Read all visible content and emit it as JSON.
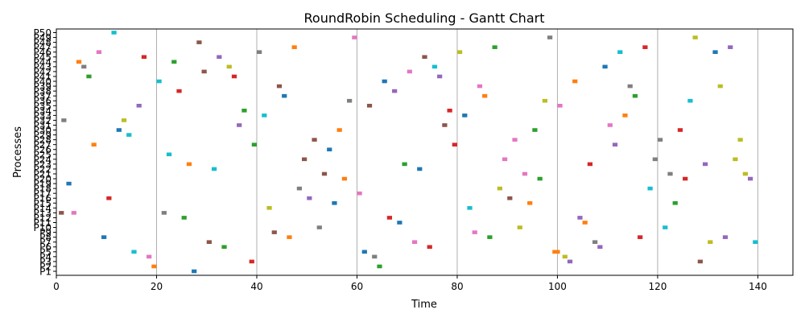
{
  "chart_data": {
    "type": "gantt",
    "title": "RoundRobin Scheduling - Gantt Chart",
    "xlabel": "Time",
    "ylabel": "Processes",
    "xlim": [
      0,
      147
    ],
    "xticks": [
      0,
      20,
      40,
      60,
      80,
      100,
      120,
      140
    ],
    "grid": "vertical",
    "categories": [
      "P1",
      "P2",
      "P3",
      "P4",
      "P5",
      "P6",
      "P7",
      "P8",
      "P9",
      "P10",
      "P11",
      "P12",
      "P13",
      "P14",
      "P15",
      "P16",
      "P17",
      "P18",
      "P19",
      "P20",
      "P21",
      "P22",
      "P23",
      "P24",
      "P25",
      "P26",
      "P27",
      "P28",
      "P29",
      "P30",
      "P31",
      "P32",
      "P33",
      "P34",
      "P35",
      "P36",
      "P37",
      "P38",
      "P39",
      "P40",
      "P41",
      "P42",
      "P43",
      "P44",
      "P45",
      "P46",
      "P47",
      "P48",
      "P49",
      "P50"
    ],
    "palette": [
      "#1f77b4",
      "#ff7f0e",
      "#2ca02c",
      "#d62728",
      "#9467bd",
      "#8c564b",
      "#e377c2",
      "#7f7f7f",
      "#bcbd22",
      "#17becf"
    ],
    "segments": [
      {
        "process": "P1",
        "start": 27,
        "end": 28
      },
      {
        "process": "P2",
        "start": 19,
        "end": 20
      },
      {
        "process": "P2",
        "start": 64,
        "end": 65
      },
      {
        "process": "P3",
        "start": 38.5,
        "end": 39.5
      },
      {
        "process": "P3",
        "start": 102,
        "end": 103
      },
      {
        "process": "P3",
        "start": 128,
        "end": 129
      },
      {
        "process": "P4",
        "start": 18,
        "end": 19
      },
      {
        "process": "P4",
        "start": 63,
        "end": 64
      },
      {
        "process": "P4",
        "start": 101,
        "end": 102
      },
      {
        "process": "P5",
        "start": 15,
        "end": 16
      },
      {
        "process": "P5",
        "start": 61,
        "end": 62
      },
      {
        "process": "P5",
        "start": 99,
        "end": 100.5
      },
      {
        "process": "P6",
        "start": 33,
        "end": 34
      },
      {
        "process": "P6",
        "start": 74,
        "end": 75
      },
      {
        "process": "P6",
        "start": 108,
        "end": 109
      },
      {
        "process": "P7",
        "start": 30,
        "end": 31
      },
      {
        "process": "P7",
        "start": 71,
        "end": 72
      },
      {
        "process": "P7",
        "start": 107,
        "end": 108
      },
      {
        "process": "P7",
        "start": 130,
        "end": 131
      },
      {
        "process": "P7",
        "start": 139,
        "end": 140
      },
      {
        "process": "P8",
        "start": 9,
        "end": 10
      },
      {
        "process": "P8",
        "start": 46,
        "end": 47
      },
      {
        "process": "P8",
        "start": 86,
        "end": 87
      },
      {
        "process": "P8",
        "start": 116,
        "end": 117
      },
      {
        "process": "P8",
        "start": 133,
        "end": 134
      },
      {
        "process": "P9",
        "start": 43,
        "end": 44
      },
      {
        "process": "P9",
        "start": 83,
        "end": 84
      },
      {
        "process": "P10",
        "start": 52,
        "end": 53
      },
      {
        "process": "P10",
        "start": 92,
        "end": 93
      },
      {
        "process": "P10",
        "start": 121,
        "end": 122
      },
      {
        "process": "P11",
        "start": 68,
        "end": 69
      },
      {
        "process": "P11",
        "start": 105,
        "end": 106
      },
      {
        "process": "P12",
        "start": 25,
        "end": 26
      },
      {
        "process": "P12",
        "start": 66,
        "end": 67
      },
      {
        "process": "P12",
        "start": 104,
        "end": 105
      },
      {
        "process": "P13",
        "start": 0.5,
        "end": 1.5
      },
      {
        "process": "P13",
        "start": 3,
        "end": 4
      },
      {
        "process": "P13",
        "start": 21,
        "end": 22
      },
      {
        "process": "P14",
        "start": 42,
        "end": 43
      },
      {
        "process": "P14",
        "start": 82,
        "end": 83
      },
      {
        "process": "P15",
        "start": 55,
        "end": 56
      },
      {
        "process": "P15",
        "start": 94,
        "end": 95
      },
      {
        "process": "P15",
        "start": 123,
        "end": 124
      },
      {
        "process": "P16",
        "start": 10,
        "end": 11
      },
      {
        "process": "P16",
        "start": 50,
        "end": 51
      },
      {
        "process": "P16",
        "start": 90,
        "end": 91
      },
      {
        "process": "P17",
        "start": 60,
        "end": 61
      },
      {
        "process": "P18",
        "start": 48,
        "end": 49
      },
      {
        "process": "P18",
        "start": 88,
        "end": 89
      },
      {
        "process": "P18",
        "start": 118,
        "end": 119
      },
      {
        "process": "P19",
        "start": 2,
        "end": 3
      },
      {
        "process": "P20",
        "start": 57,
        "end": 58
      },
      {
        "process": "P20",
        "start": 96,
        "end": 97
      },
      {
        "process": "P20",
        "start": 125,
        "end": 126
      },
      {
        "process": "P20",
        "start": 138,
        "end": 139
      },
      {
        "process": "P21",
        "start": 53,
        "end": 54
      },
      {
        "process": "P21",
        "start": 93,
        "end": 94
      },
      {
        "process": "P21",
        "start": 122,
        "end": 123
      },
      {
        "process": "P21",
        "start": 137,
        "end": 138
      },
      {
        "process": "P22",
        "start": 31,
        "end": 32
      },
      {
        "process": "P22",
        "start": 72,
        "end": 73
      },
      {
        "process": "P23",
        "start": 26,
        "end": 27
      },
      {
        "process": "P23",
        "start": 69,
        "end": 70
      },
      {
        "process": "P23",
        "start": 106,
        "end": 107
      },
      {
        "process": "P23",
        "start": 129,
        "end": 130
      },
      {
        "process": "P24",
        "start": 49,
        "end": 50
      },
      {
        "process": "P24",
        "start": 89,
        "end": 90
      },
      {
        "process": "P24",
        "start": 119,
        "end": 120
      },
      {
        "process": "P24",
        "start": 135,
        "end": 136
      },
      {
        "process": "P25",
        "start": 22,
        "end": 23
      },
      {
        "process": "P26",
        "start": 54,
        "end": 55
      },
      {
        "process": "P27",
        "start": 7,
        "end": 8
      },
      {
        "process": "P27",
        "start": 39,
        "end": 40
      },
      {
        "process": "P27",
        "start": 79,
        "end": 80
      },
      {
        "process": "P27",
        "start": 111,
        "end": 112
      },
      {
        "process": "P28",
        "start": 51,
        "end": 52
      },
      {
        "process": "P28",
        "start": 91,
        "end": 92
      },
      {
        "process": "P28",
        "start": 120,
        "end": 121
      },
      {
        "process": "P28",
        "start": 136,
        "end": 137
      },
      {
        "process": "P29",
        "start": 14,
        "end": 15
      },
      {
        "process": "P30",
        "start": 12,
        "end": 13
      },
      {
        "process": "P30",
        "start": 56,
        "end": 57
      },
      {
        "process": "P30",
        "start": 95,
        "end": 96
      },
      {
        "process": "P30",
        "start": 124,
        "end": 125
      },
      {
        "process": "P31",
        "start": 36,
        "end": 37
      },
      {
        "process": "P31",
        "start": 77,
        "end": 78
      },
      {
        "process": "P31",
        "start": 110,
        "end": 111
      },
      {
        "process": "P32",
        "start": 1,
        "end": 2
      },
      {
        "process": "P32",
        "start": 13,
        "end": 14
      },
      {
        "process": "P33",
        "start": 41,
        "end": 42
      },
      {
        "process": "P33",
        "start": 81,
        "end": 82
      },
      {
        "process": "P33",
        "start": 113,
        "end": 114
      },
      {
        "process": "P34",
        "start": 37,
        "end": 38
      },
      {
        "process": "P34",
        "start": 78,
        "end": 79
      },
      {
        "process": "P35",
        "start": 16,
        "end": 17
      },
      {
        "process": "P35",
        "start": 62,
        "end": 63
      },
      {
        "process": "P35",
        "start": 100,
        "end": 101
      },
      {
        "process": "P36",
        "start": 58,
        "end": 59
      },
      {
        "process": "P36",
        "start": 97,
        "end": 98
      },
      {
        "process": "P36",
        "start": 126,
        "end": 127
      },
      {
        "process": "P37",
        "start": 45,
        "end": 46
      },
      {
        "process": "P37",
        "start": 85,
        "end": 86
      },
      {
        "process": "P37",
        "start": 115,
        "end": 116
      },
      {
        "process": "P38",
        "start": 24,
        "end": 25
      },
      {
        "process": "P38",
        "start": 67,
        "end": 68
      },
      {
        "process": "P39",
        "start": 44,
        "end": 45
      },
      {
        "process": "P39",
        "start": 84,
        "end": 85
      },
      {
        "process": "P39",
        "start": 114,
        "end": 115
      },
      {
        "process": "P39",
        "start": 132,
        "end": 133
      },
      {
        "process": "P40",
        "start": 20,
        "end": 21
      },
      {
        "process": "P40",
        "start": 65,
        "end": 66
      },
      {
        "process": "P40",
        "start": 103,
        "end": 104
      },
      {
        "process": "P41",
        "start": 6,
        "end": 7
      },
      {
        "process": "P41",
        "start": 35,
        "end": 36
      },
      {
        "process": "P41",
        "start": 76,
        "end": 77
      },
      {
        "process": "P42",
        "start": 29,
        "end": 30
      },
      {
        "process": "P42",
        "start": 70,
        "end": 71
      },
      {
        "process": "P43",
        "start": 5,
        "end": 6
      },
      {
        "process": "P43",
        "start": 34,
        "end": 35
      },
      {
        "process": "P43",
        "start": 75,
        "end": 76
      },
      {
        "process": "P43",
        "start": 109,
        "end": 110
      },
      {
        "process": "P44",
        "start": 4,
        "end": 5
      },
      {
        "process": "P44",
        "start": 23,
        "end": 24
      },
      {
        "process": "P45",
        "start": 17,
        "end": 18
      },
      {
        "process": "P45",
        "start": 32,
        "end": 33
      },
      {
        "process": "P45",
        "start": 73,
        "end": 74
      },
      {
        "process": "P46",
        "start": 8,
        "end": 9
      },
      {
        "process": "P46",
        "start": 40,
        "end": 41
      },
      {
        "process": "P46",
        "start": 80,
        "end": 81
      },
      {
        "process": "P46",
        "start": 112,
        "end": 113
      },
      {
        "process": "P46",
        "start": 131,
        "end": 132
      },
      {
        "process": "P47",
        "start": 47,
        "end": 48
      },
      {
        "process": "P47",
        "start": 87,
        "end": 88
      },
      {
        "process": "P47",
        "start": 117,
        "end": 118
      },
      {
        "process": "P47",
        "start": 134,
        "end": 135
      },
      {
        "process": "P48",
        "start": 28,
        "end": 29
      },
      {
        "process": "P49",
        "start": 59,
        "end": 60
      },
      {
        "process": "P49",
        "start": 98,
        "end": 99
      },
      {
        "process": "P49",
        "start": 127,
        "end": 128
      },
      {
        "process": "P50",
        "start": 11,
        "end": 12
      }
    ]
  }
}
